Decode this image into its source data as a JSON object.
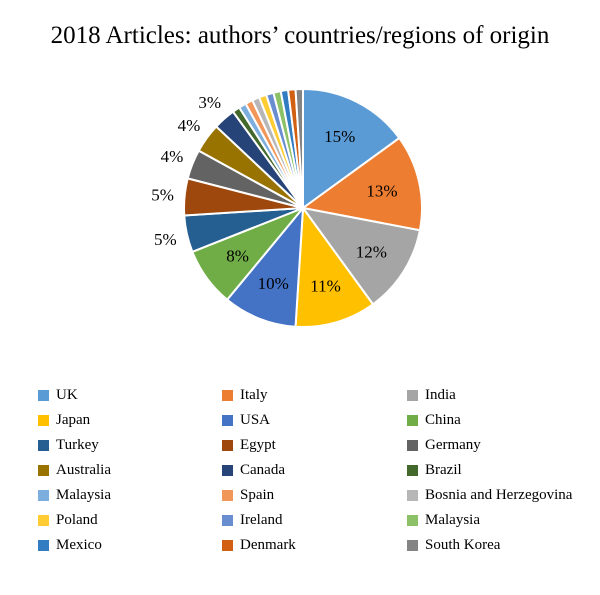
{
  "chart_data": {
    "type": "pie",
    "title": "2018 Articles: authors’ countries/regions of origin",
    "slices": [
      {
        "name": "UK",
        "value": 15,
        "label": "15%",
        "color": "#5B9BD5"
      },
      {
        "name": "Italy",
        "value": 13,
        "label": "13%",
        "color": "#ED7D31"
      },
      {
        "name": "India",
        "value": 12,
        "label": "12%",
        "color": "#A5A5A5"
      },
      {
        "name": "Japan",
        "value": 11,
        "label": "11%",
        "color": "#FFC000"
      },
      {
        "name": "USA",
        "value": 10,
        "label": "10%",
        "color": "#4472C4"
      },
      {
        "name": "China",
        "value": 8,
        "label": "8%",
        "color": "#70AD47"
      },
      {
        "name": "Turkey",
        "value": 5,
        "label": "5%",
        "color": "#255E91"
      },
      {
        "name": "Egypt",
        "value": 5,
        "label": "5%",
        "color": "#9E480E"
      },
      {
        "name": "Germany",
        "value": 4,
        "label": "4%",
        "color": "#636363"
      },
      {
        "name": "Australia",
        "value": 4,
        "label": "4%",
        "color": "#997300"
      },
      {
        "name": "Canada",
        "value": 3,
        "label": "3%",
        "color": "#264478"
      },
      {
        "name": "Brazil",
        "value": 1,
        "label": "",
        "color": "#43682B"
      },
      {
        "name": "Malaysia",
        "value": 1,
        "label": "",
        "color": "#7CAFDD"
      },
      {
        "name": "Spain",
        "value": 1,
        "label": "",
        "color": "#F1975A"
      },
      {
        "name": "Bosnia and Herzegovina",
        "value": 1,
        "label": "",
        "color": "#B7B7B7"
      },
      {
        "name": "Poland",
        "value": 1,
        "label": "",
        "color": "#FFCD33"
      },
      {
        "name": "Ireland",
        "value": 1,
        "label": "",
        "color": "#698ED0"
      },
      {
        "name": "Malaysia",
        "value": 1,
        "label": "",
        "color": "#8CC168"
      },
      {
        "name": "Mexico",
        "value": 1,
        "label": "",
        "color": "#327DC2"
      },
      {
        "name": "Denmark",
        "value": 1,
        "label": "",
        "color": "#D26012"
      },
      {
        "name": "South Korea",
        "value": 1,
        "label": "",
        "color": "#848484"
      }
    ],
    "legend_position": "bottom"
  }
}
